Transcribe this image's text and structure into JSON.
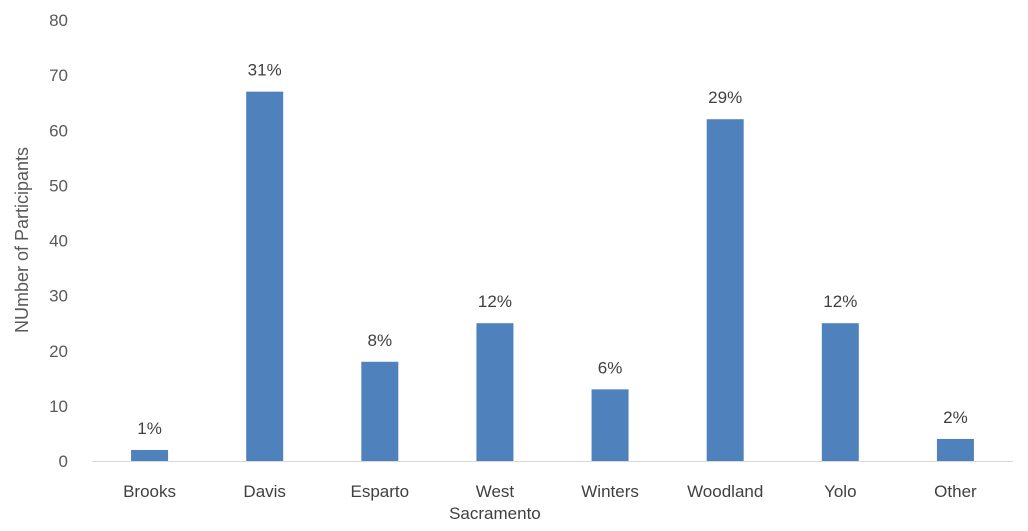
{
  "chart_data": {
    "type": "bar",
    "title": "",
    "xlabel": "",
    "ylabel": "NUmber of Participants",
    "ylim": [
      0,
      80
    ],
    "yticks": [
      0,
      10,
      20,
      30,
      40,
      50,
      60,
      70,
      80
    ],
    "grid": false,
    "legend": "none",
    "categories": [
      "Brooks",
      "Davis",
      "Esparto",
      "West Sacramento",
      "Winters",
      "Woodland",
      "Yolo",
      "Other"
    ],
    "category_lines": [
      [
        "Brooks"
      ],
      [
        "Davis"
      ],
      [
        "Esparto"
      ],
      [
        "West",
        "Sacramento"
      ],
      [
        "Winters"
      ],
      [
        "Woodland"
      ],
      [
        "Yolo"
      ],
      [
        "Other"
      ]
    ],
    "values": [
      2,
      67,
      18,
      25,
      13,
      62,
      25,
      4
    ],
    "data_labels": [
      "1%",
      "31%",
      "8%",
      "12%",
      "6%",
      "29%",
      "12%",
      "2%"
    ],
    "bar_color": "#4F81BD"
  }
}
